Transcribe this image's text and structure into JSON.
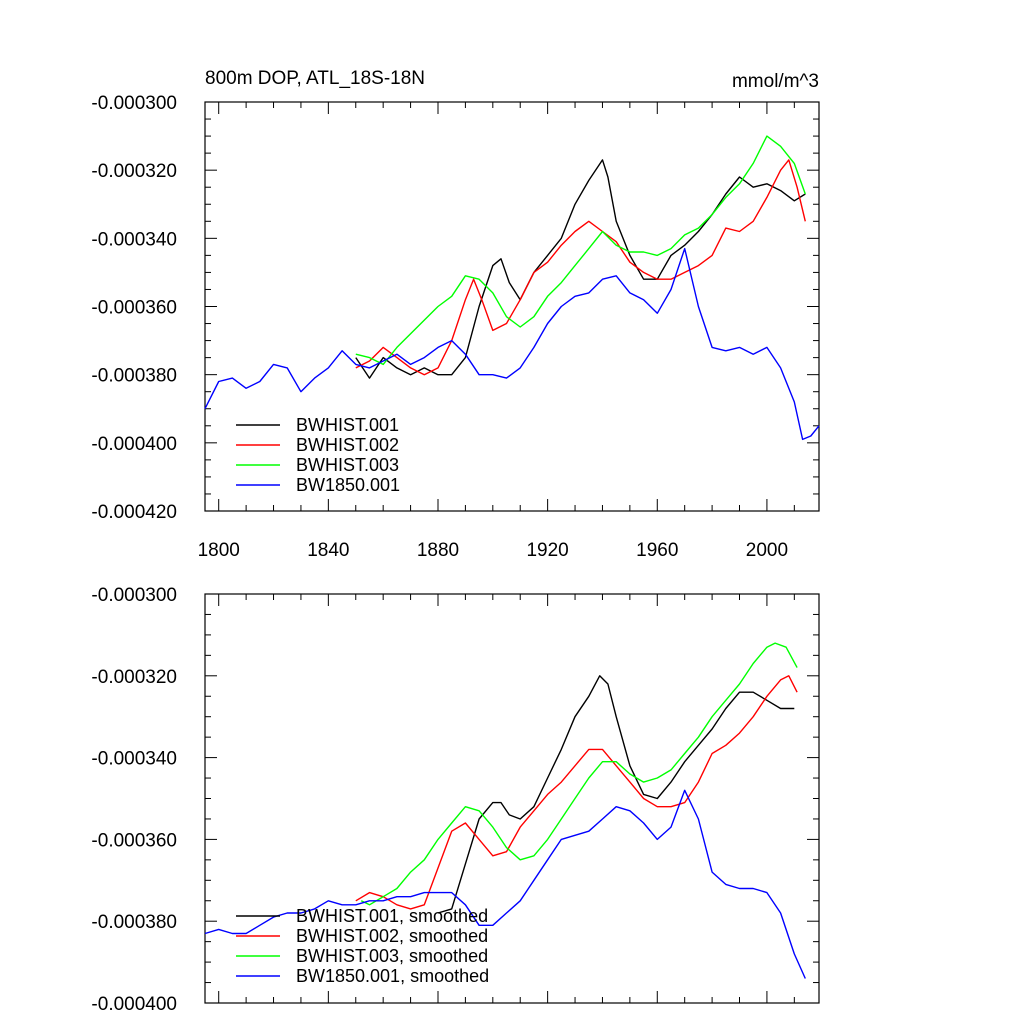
{
  "chart_data": [
    {
      "type": "line",
      "title": "800m DOP, ATL_18S-18N",
      "units": "mmol/m^3",
      "xlim": [
        1795,
        2019
      ],
      "ylim": [
        -0.00042,
        -0.0003
      ],
      "x_ticks": [
        1800,
        1840,
        1880,
        1920,
        1960,
        2000
      ],
      "y_ticks": [
        -0.0003,
        -0.00032,
        -0.00034,
        -0.00036,
        -0.00038,
        -0.0004,
        -0.00042
      ],
      "y_tick_labels": [
        "-0.000300",
        "-0.000320",
        "-0.000340",
        "-0.000360",
        "-0.000380",
        "-0.000400",
        "-0.000420"
      ],
      "legend_position": "bottom-left",
      "series": [
        {
          "name": "BWHIST.001",
          "color": "#000000",
          "x": [
            1850,
            1855,
            1860,
            1865,
            1870,
            1875,
            1880,
            1885,
            1890,
            1895,
            1900,
            1903,
            1906,
            1910,
            1915,
            1920,
            1925,
            1930,
            1935,
            1940,
            1942,
            1945,
            1950,
            1955,
            1960,
            1965,
            1970,
            1975,
            1980,
            1985,
            1990,
            1995,
            2000,
            2005,
            2010,
            2014
          ],
          "y": [
            -0.000375,
            -0.000381,
            -0.000375,
            -0.000378,
            -0.00038,
            -0.000378,
            -0.00038,
            -0.00038,
            -0.000375,
            -0.00036,
            -0.000348,
            -0.000346,
            -0.000353,
            -0.000358,
            -0.00035,
            -0.000345,
            -0.00034,
            -0.00033,
            -0.000323,
            -0.000317,
            -0.000322,
            -0.000335,
            -0.000345,
            -0.000352,
            -0.000352,
            -0.000345,
            -0.000342,
            -0.000338,
            -0.000333,
            -0.000327,
            -0.000322,
            -0.000325,
            -0.000324,
            -0.000326,
            -0.000329,
            -0.000327
          ]
        },
        {
          "name": "BWHIST.002",
          "color": "#ff0000",
          "x": [
            1850,
            1855,
            1860,
            1865,
            1870,
            1875,
            1880,
            1885,
            1890,
            1893,
            1896,
            1900,
            1905,
            1910,
            1915,
            1920,
            1925,
            1930,
            1935,
            1940,
            1945,
            1950,
            1955,
            1960,
            1965,
            1970,
            1975,
            1980,
            1985,
            1990,
            1995,
            2000,
            2005,
            2008,
            2011,
            2014
          ],
          "y": [
            -0.000378,
            -0.000376,
            -0.000372,
            -0.000375,
            -0.000378,
            -0.00038,
            -0.000378,
            -0.00037,
            -0.000358,
            -0.000352,
            -0.000358,
            -0.000367,
            -0.000365,
            -0.000358,
            -0.00035,
            -0.000347,
            -0.000342,
            -0.000338,
            -0.000335,
            -0.000338,
            -0.000341,
            -0.000347,
            -0.00035,
            -0.000352,
            -0.000352,
            -0.00035,
            -0.000348,
            -0.000345,
            -0.000337,
            -0.000338,
            -0.000335,
            -0.000328,
            -0.00032,
            -0.000317,
            -0.000325,
            -0.000335
          ]
        },
        {
          "name": "BWHIST.003",
          "color": "#00ff00",
          "x": [
            1850,
            1855,
            1860,
            1865,
            1870,
            1875,
            1880,
            1885,
            1890,
            1895,
            1900,
            1905,
            1910,
            1915,
            1920,
            1925,
            1930,
            1935,
            1940,
            1945,
            1950,
            1955,
            1960,
            1965,
            1970,
            1975,
            1980,
            1985,
            1990,
            1995,
            2000,
            2005,
            2010,
            2014
          ],
          "y": [
            -0.000374,
            -0.000375,
            -0.000377,
            -0.000372,
            -0.000368,
            -0.000364,
            -0.00036,
            -0.000357,
            -0.000351,
            -0.000352,
            -0.000356,
            -0.000363,
            -0.000366,
            -0.000363,
            -0.000357,
            -0.000353,
            -0.000348,
            -0.000343,
            -0.000338,
            -0.000342,
            -0.000344,
            -0.000344,
            -0.000345,
            -0.000343,
            -0.000339,
            -0.000337,
            -0.000333,
            -0.000328,
            -0.000324,
            -0.000318,
            -0.00031,
            -0.000313,
            -0.000318,
            -0.000327
          ]
        },
        {
          "name": "BW1850.001",
          "color": "#0000ff",
          "x": [
            1795,
            1800,
            1805,
            1810,
            1815,
            1820,
            1825,
            1830,
            1835,
            1840,
            1845,
            1850,
            1855,
            1860,
            1865,
            1870,
            1875,
            1880,
            1885,
            1890,
            1895,
            1900,
            1905,
            1910,
            1915,
            1920,
            1925,
            1930,
            1935,
            1940,
            1945,
            1950,
            1955,
            1960,
            1965,
            1970,
            1975,
            1980,
            1985,
            1990,
            1995,
            2000,
            2005,
            2010,
            2013,
            2016,
            2019
          ],
          "y": [
            -0.00039,
            -0.000382,
            -0.000381,
            -0.000384,
            -0.000382,
            -0.000377,
            -0.000378,
            -0.000385,
            -0.000381,
            -0.000378,
            -0.000373,
            -0.000377,
            -0.000378,
            -0.000376,
            -0.000374,
            -0.000377,
            -0.000375,
            -0.000372,
            -0.00037,
            -0.000374,
            -0.00038,
            -0.00038,
            -0.000381,
            -0.000378,
            -0.000372,
            -0.000365,
            -0.00036,
            -0.000357,
            -0.000356,
            -0.000352,
            -0.000351,
            -0.000356,
            -0.000358,
            -0.000362,
            -0.000355,
            -0.000343,
            -0.00036,
            -0.000372,
            -0.000373,
            -0.000372,
            -0.000374,
            -0.000372,
            -0.000378,
            -0.000388,
            -0.000399,
            -0.000398,
            -0.000395
          ]
        }
      ]
    },
    {
      "type": "line",
      "title": "",
      "xlim": [
        1795,
        2019
      ],
      "ylim": [
        -0.0004,
        -0.0003
      ],
      "x_ticks": [
        1800,
        1840,
        1880,
        1920,
        1960,
        2000
      ],
      "y_ticks": [
        -0.0003,
        -0.00032,
        -0.00034,
        -0.00036,
        -0.00038,
        -0.0004
      ],
      "y_tick_labels": [
        "-0.000300",
        "-0.000320",
        "-0.000340",
        "-0.000360",
        "-0.000380",
        "-0.000400"
      ],
      "legend_position": "bottom-left",
      "series": [
        {
          "name": "BWHIST.001, smoothed",
          "color": "#000000",
          "x": [
            1880,
            1885,
            1890,
            1895,
            1900,
            1903,
            1906,
            1910,
            1915,
            1920,
            1925,
            1930,
            1935,
            1939,
            1942,
            1945,
            1950,
            1955,
            1960,
            1965,
            1970,
            1975,
            1980,
            1985,
            1990,
            1995,
            2000,
            2005,
            2010
          ],
          "y": [
            -0.000378,
            -0.000377,
            -0.000366,
            -0.000355,
            -0.000351,
            -0.000351,
            -0.000354,
            -0.000355,
            -0.000352,
            -0.000345,
            -0.000338,
            -0.00033,
            -0.000325,
            -0.00032,
            -0.000322,
            -0.00033,
            -0.000342,
            -0.000349,
            -0.00035,
            -0.000346,
            -0.000341,
            -0.000337,
            -0.000333,
            -0.000328,
            -0.000324,
            -0.000324,
            -0.000326,
            -0.000328,
            -0.000328
          ]
        },
        {
          "name": "BWHIST.002, smoothed",
          "color": "#ff0000",
          "x": [
            1850,
            1855,
            1860,
            1865,
            1870,
            1875,
            1880,
            1885,
            1890,
            1895,
            1900,
            1905,
            1910,
            1915,
            1920,
            1925,
            1930,
            1935,
            1940,
            1945,
            1950,
            1955,
            1960,
            1965,
            1970,
            1975,
            1980,
            1985,
            1990,
            1995,
            2000,
            2005,
            2008,
            2011
          ],
          "y": [
            -0.000375,
            -0.000373,
            -0.000374,
            -0.000376,
            -0.000377,
            -0.000376,
            -0.000367,
            -0.000358,
            -0.000356,
            -0.00036,
            -0.000364,
            -0.000363,
            -0.000357,
            -0.000353,
            -0.000349,
            -0.000346,
            -0.000342,
            -0.000338,
            -0.000338,
            -0.000342,
            -0.000346,
            -0.00035,
            -0.000352,
            -0.000352,
            -0.000351,
            -0.000346,
            -0.000339,
            -0.000337,
            -0.000334,
            -0.00033,
            -0.000325,
            -0.000321,
            -0.00032,
            -0.000324
          ]
        },
        {
          "name": "BWHIST.003, smoothed",
          "color": "#00ff00",
          "x": [
            1852,
            1855,
            1860,
            1865,
            1870,
            1875,
            1880,
            1885,
            1890,
            1895,
            1900,
            1905,
            1910,
            1915,
            1920,
            1925,
            1930,
            1935,
            1940,
            1945,
            1950,
            1955,
            1960,
            1965,
            1970,
            1975,
            1980,
            1985,
            1990,
            1995,
            2000,
            2003,
            2007,
            2011
          ],
          "y": [
            -0.000375,
            -0.000376,
            -0.000374,
            -0.000372,
            -0.000368,
            -0.000365,
            -0.00036,
            -0.000356,
            -0.000352,
            -0.000353,
            -0.000357,
            -0.000362,
            -0.000365,
            -0.000364,
            -0.00036,
            -0.000355,
            -0.00035,
            -0.000345,
            -0.000341,
            -0.000341,
            -0.000344,
            -0.000346,
            -0.000345,
            -0.000343,
            -0.000339,
            -0.000335,
            -0.00033,
            -0.000326,
            -0.000322,
            -0.000317,
            -0.000313,
            -0.000312,
            -0.000313,
            -0.000318
          ]
        },
        {
          "name": "BW1850.001, smoothed",
          "color": "#0000ff",
          "x": [
            1795,
            1800,
            1805,
            1810,
            1815,
            1820,
            1825,
            1830,
            1835,
            1840,
            1845,
            1850,
            1855,
            1860,
            1865,
            1870,
            1875,
            1880,
            1885,
            1890,
            1895,
            1900,
            1905,
            1910,
            1915,
            1920,
            1925,
            1930,
            1935,
            1940,
            1945,
            1950,
            1955,
            1960,
            1965,
            1970,
            1975,
            1980,
            1985,
            1990,
            1995,
            2000,
            2005,
            2010,
            2014
          ],
          "y": [
            -0.000383,
            -0.000382,
            -0.000383,
            -0.000383,
            -0.000381,
            -0.000379,
            -0.000378,
            -0.000378,
            -0.000377,
            -0.000375,
            -0.000376,
            -0.000376,
            -0.000375,
            -0.000375,
            -0.000374,
            -0.000374,
            -0.000373,
            -0.000373,
            -0.000373,
            -0.000376,
            -0.000381,
            -0.000381,
            -0.000378,
            -0.000375,
            -0.00037,
            -0.000365,
            -0.00036,
            -0.000359,
            -0.000358,
            -0.000355,
            -0.000352,
            -0.000353,
            -0.000356,
            -0.00036,
            -0.000357,
            -0.000348,
            -0.000355,
            -0.000368,
            -0.000371,
            -0.000372,
            -0.000372,
            -0.000373,
            -0.000378,
            -0.000388,
            -0.000394
          ]
        }
      ]
    }
  ]
}
